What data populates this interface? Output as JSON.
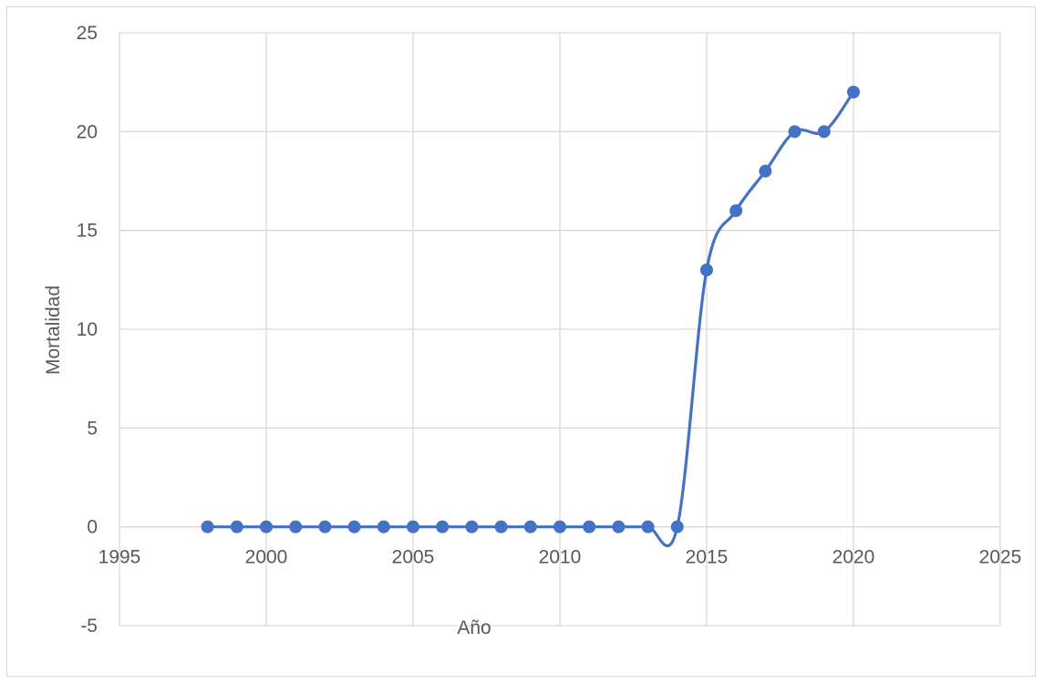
{
  "chart_data": {
    "type": "scatter",
    "title": "",
    "xlabel": "Año",
    "ylabel": "Mortalidad",
    "xlim": [
      1995,
      2025
    ],
    "ylim": [
      -5,
      25
    ],
    "xticks": [
      1995,
      2000,
      2005,
      2010,
      2015,
      2020,
      2025
    ],
    "yticks": [
      -5,
      0,
      5,
      10,
      15,
      20,
      25
    ],
    "grid": true,
    "line_style": "smooth",
    "marker": "circle",
    "series": [
      {
        "color": "#4472c4",
        "x": [
          1998,
          1999,
          2000,
          2001,
          2002,
          2003,
          2004,
          2005,
          2006,
          2007,
          2008,
          2009,
          2010,
          2011,
          2012,
          2013,
          2014,
          2015,
          2016,
          2017,
          2018,
          2019,
          2020
        ],
        "y": [
          0,
          0,
          0,
          0,
          0,
          0,
          0,
          0,
          0,
          0,
          0,
          0,
          0,
          0,
          0,
          0,
          0,
          13,
          16,
          18,
          20,
          20,
          22
        ]
      }
    ]
  }
}
